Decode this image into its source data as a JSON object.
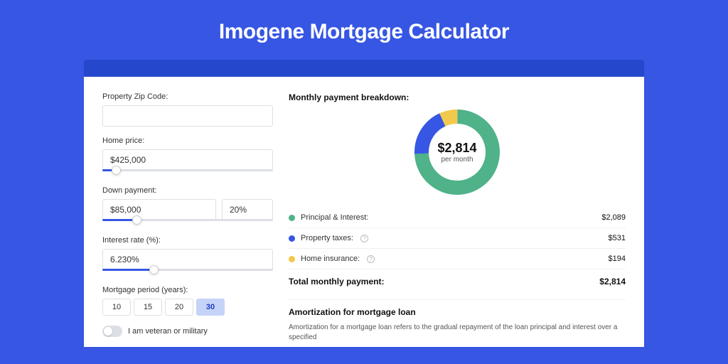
{
  "colors": {
    "page_bg": "#3656e3",
    "accent_bg": "#2547cc",
    "card_bg": "#ffffff",
    "text_primary": "#111111",
    "text_body": "#333333",
    "border": "#dcdfe6",
    "slider_fill": "#3656e3",
    "period_active_bg": "#c6d3f8"
  },
  "title": "Imogene Mortgage Calculator",
  "form": {
    "zip": {
      "label": "Property Zip Code:",
      "value": ""
    },
    "home_price": {
      "label": "Home price:",
      "value": "$425,000",
      "slider_pct": 8
    },
    "down_payment": {
      "label": "Down payment:",
      "value": "$85,000",
      "pct_value": "20%",
      "slider_pct": 20
    },
    "interest_rate": {
      "label": "Interest rate (%):",
      "value": "6.230%",
      "slider_pct": 30
    },
    "mortgage_period": {
      "label": "Mortgage period (years):",
      "options": [
        {
          "label": "10",
          "active": false
        },
        {
          "label": "15",
          "active": false
        },
        {
          "label": "20",
          "active": false
        },
        {
          "label": "30",
          "active": true
        }
      ]
    },
    "veteran": {
      "label": "I am veteran or military",
      "checked": false
    }
  },
  "breakdown": {
    "title": "Monthly payment breakdown:",
    "donut": {
      "amount": "$2,814",
      "sub": "per month",
      "size": 120,
      "thickness": 20,
      "segments": [
        {
          "key": "principal_interest",
          "value": 2089,
          "color": "#4fb289"
        },
        {
          "key": "property_taxes",
          "value": 531,
          "color": "#3656e3"
        },
        {
          "key": "home_insurance",
          "value": 194,
          "color": "#f2c94c"
        }
      ]
    },
    "items": [
      {
        "label": "Principal & Interest:",
        "value": "$2,089",
        "color": "#4fb289",
        "info": false
      },
      {
        "label": "Property taxes:",
        "value": "$531",
        "color": "#3656e3",
        "info": true
      },
      {
        "label": "Home insurance:",
        "value": "$194",
        "color": "#f2c94c",
        "info": true
      }
    ],
    "total": {
      "label": "Total monthly payment:",
      "value": "$2,814"
    }
  },
  "amortization": {
    "title": "Amortization for mortgage loan",
    "body": "Amortization for a mortgage loan refers to the gradual repayment of the loan principal and interest over a specified"
  }
}
